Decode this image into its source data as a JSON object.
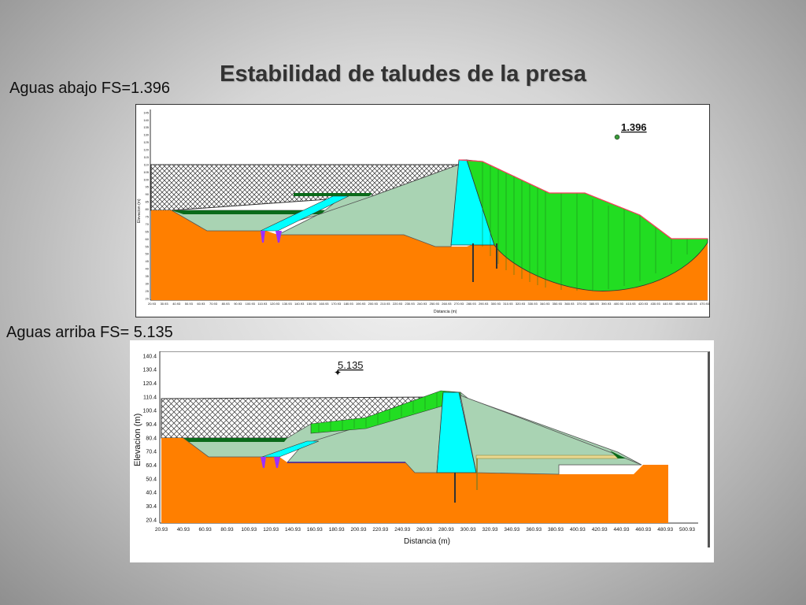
{
  "slide": {
    "title": "Estabilidad de taludes de la presa",
    "caption_top": "Aguas abajo FS=1.396",
    "caption_bottom": "Aguas arriba FS= 5.135"
  },
  "top_panel": {
    "fs_label": "1.396",
    "xlabel": "Distancia (m)",
    "ylabel": "Elevacion (m)",
    "y_ticks": [
      "145",
      "140",
      "135",
      "130",
      "125",
      "120",
      "115",
      "110",
      "105",
      "100",
      "95",
      "90",
      "85",
      "80",
      "75",
      "70",
      "65",
      "60",
      "55",
      "50",
      "45",
      "40",
      "35",
      "30",
      "25",
      "20"
    ],
    "x_ticks": [
      "20.93",
      "30.93",
      "40.93",
      "50.93",
      "60.93",
      "70.93",
      "80.93",
      "90.93",
      "100.93",
      "110.93",
      "120.93",
      "130.93",
      "140.93",
      "150.93",
      "160.93",
      "170.93",
      "180.93",
      "190.93",
      "200.93",
      "210.93",
      "220.93",
      "230.93",
      "240.93",
      "250.93",
      "260.93",
      "270.93",
      "280.93",
      "290.93",
      "300.93",
      "310.93",
      "320.93",
      "330.93",
      "340.93",
      "350.93",
      "360.93",
      "370.93",
      "380.93",
      "390.93",
      "400.93",
      "410.93",
      "420.93",
      "430.93",
      "440.93",
      "450.93",
      "460.93",
      "470.93"
    ]
  },
  "bottom_panel": {
    "fs_label": "5.135",
    "xlabel": "Distancia (m)",
    "ylabel": "Elevacion (m)",
    "y_ticks": [
      "140.4",
      "130.4",
      "120.4",
      "110.4",
      "100.4",
      "90.4",
      "80.4",
      "70.4",
      "60.4",
      "50.4",
      "40.4",
      "30.4",
      "20.4"
    ],
    "x_ticks": [
      "20.93",
      "40.93",
      "60.93",
      "80.93",
      "100.93",
      "120.93",
      "140.93",
      "160.93",
      "180.93",
      "200.93",
      "220.93",
      "240.93",
      "260.93",
      "280.93",
      "300.93",
      "320.93",
      "340.93",
      "360.93",
      "380.93",
      "400.93",
      "420.93",
      "440.93",
      "460.93",
      "480.93",
      "500.93"
    ]
  },
  "colors": {
    "foundation": "#ff7f00",
    "core": "#00ffff",
    "shell": "#a9d3b3",
    "slip_mass": "#22dd22",
    "reservoir_hatch": "#333333",
    "toe_drain": "#9b30ff"
  }
}
